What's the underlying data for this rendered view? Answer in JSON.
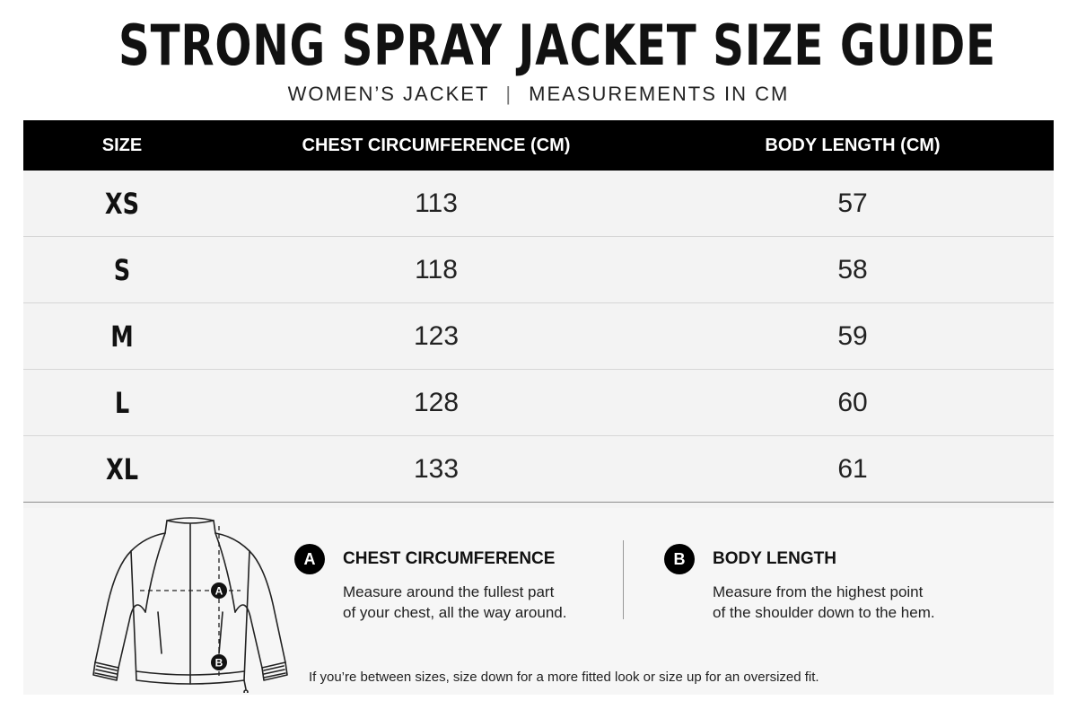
{
  "header": {
    "title": "STRONG SPRAY JACKET SIZE GUIDE",
    "subtitle_left": "WOMEN’S JACKET",
    "subtitle_separator": "|",
    "subtitle_right": "MEASUREMENTS IN CM"
  },
  "table": {
    "columns": [
      "SIZE",
      "CHEST CIRCUMFERENCE (CM)",
      "BODY LENGTH (CM)"
    ],
    "rows": [
      [
        "XS",
        "113",
        "57"
      ],
      [
        "S",
        "118",
        "58"
      ],
      [
        "M",
        "123",
        "59"
      ],
      [
        "L",
        "128",
        "60"
      ],
      [
        "XL",
        "133",
        "61"
      ]
    ]
  },
  "measures": {
    "a": {
      "badge": "A",
      "title": "CHEST CIRCUMFERENCE",
      "desc_line1": "Measure around the fullest part",
      "desc_line2": "of your chest, all the way around."
    },
    "b": {
      "badge": "B",
      "title": "BODY LENGTH",
      "desc_line1": "Measure from the highest point",
      "desc_line2": "of the shoulder down to the hem."
    }
  },
  "diagram": {
    "marker_a": "A",
    "marker_b": "B"
  },
  "footnote": "If you’re between sizes, size down for a more fitted look or size up for an oversized fit.",
  "colors": {
    "header_bar": "#000000",
    "table_background": "#f3f3f3",
    "text": "#111111"
  },
  "icons": [
    "jacket-outline-illustration"
  ]
}
